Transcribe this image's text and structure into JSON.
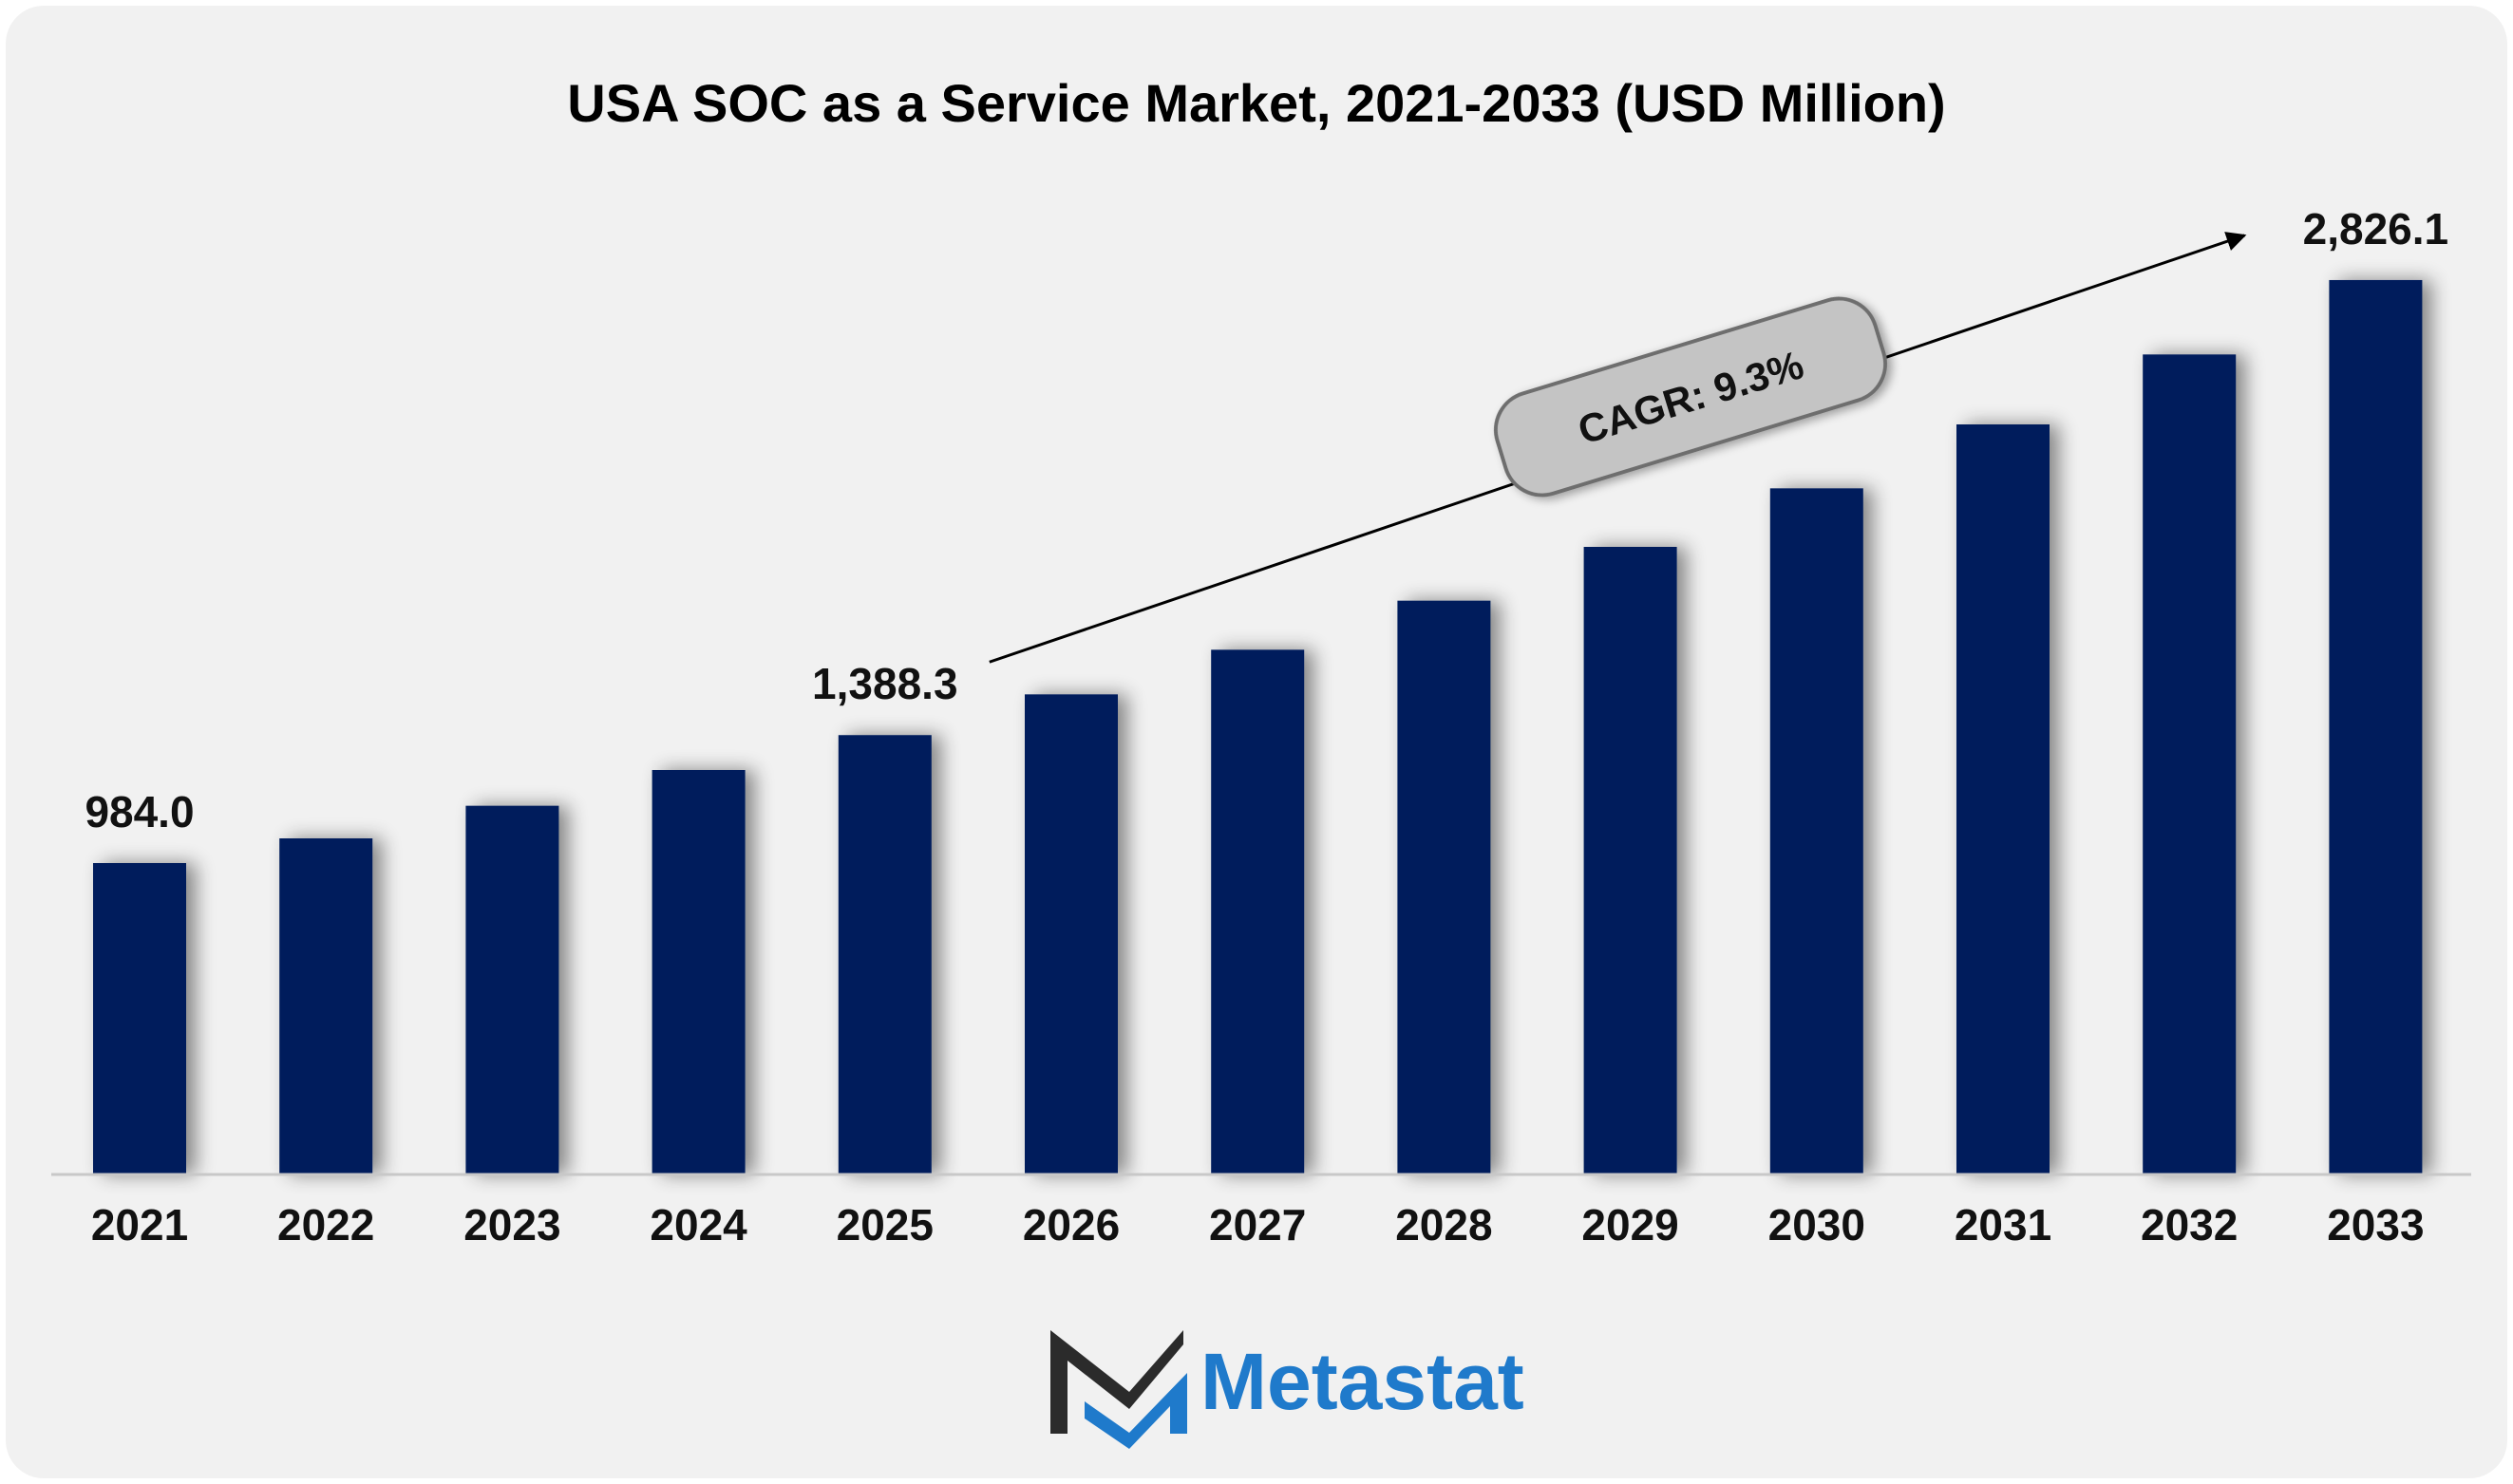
{
  "chart_data": {
    "type": "bar",
    "title": "USA SOC as a Service Market, 2021-2033 (USD Million)",
    "categories": [
      "2021",
      "2022",
      "2023",
      "2024",
      "2025",
      "2026",
      "2027",
      "2028",
      "2029",
      "2030",
      "2031",
      "2032",
      "2033"
    ],
    "values": [
      984.0,
      1062.0,
      1165.0,
      1278.0,
      1388.3,
      1517.0,
      1658.0,
      1813.0,
      1983.0,
      2168.0,
      2370.0,
      2591.0,
      2826.1
    ],
    "data_labels": [
      {
        "category": "2021",
        "text": "984.0"
      },
      {
        "category": "2025",
        "text": "1,388.3"
      },
      {
        "category": "2033",
        "text": "2,826.1"
      }
    ],
    "ylim": [
      0,
      3000
    ],
    "xlabel": "",
    "ylabel": "",
    "grid": false,
    "annotation": {
      "text": "CAGR: 9.3%",
      "from_category": "2025",
      "to_category": "2033"
    },
    "colors": {
      "bar": "#041e5b",
      "axis": "#c8c8c8",
      "arrow": "#000000",
      "cagr_fill": "#c4c4c4",
      "cagr_border": "#6e6e6e"
    }
  },
  "brand": {
    "name": "Metastat",
    "logo_icon": "metastat-m-logo",
    "colors": {
      "dark": "#2b2b2b",
      "blue": "#1f7acb"
    }
  }
}
